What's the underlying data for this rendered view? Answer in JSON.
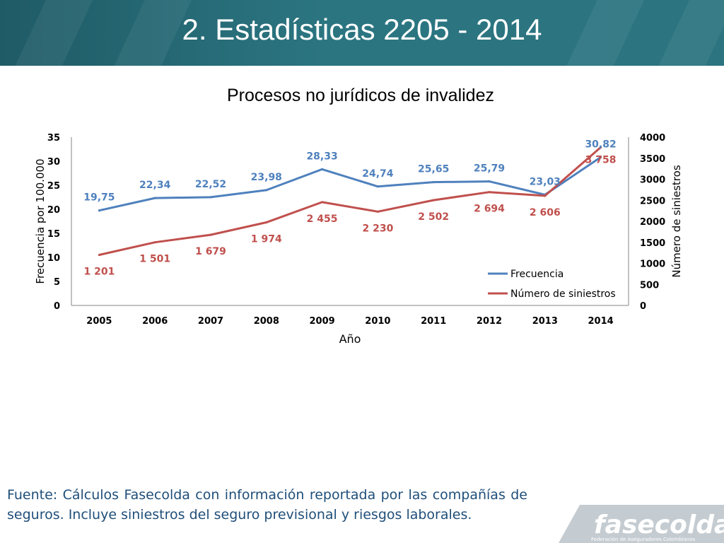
{
  "slide": {
    "title": "2. Estadísticas 2205 - 2014",
    "footnote": "Fuente: Cálculos Fasecolda con información reportada por las compañías de seguros. Incluye siniestros del seguro previsional y riesgos laborales."
  },
  "logo": {
    "name": "fasecolda",
    "tagline": "Federación de Aseguradores Colombianos"
  },
  "colors": {
    "header": "#2b7480",
    "frecuencia": "#4f81bd",
    "siniestros": "#c0504d",
    "footnote": "#1f4e79"
  },
  "chart_data": {
    "type": "line",
    "title": "Procesos no jurídicos de invalidez",
    "xlabel": "Año",
    "ylabel": "Frecuencia por 100.000",
    "y2label": "Número de siniestros",
    "categories": [
      "2005",
      "2006",
      "2007",
      "2008",
      "2009",
      "2010",
      "2011",
      "2012",
      "2013",
      "2014"
    ],
    "ylim": [
      0,
      35
    ],
    "yticks": [
      "0",
      "5",
      "10",
      "15",
      "20",
      "25",
      "30",
      "35"
    ],
    "y2lim": [
      0,
      4000
    ],
    "y2ticks": [
      "0",
      "500",
      "1000",
      "1500",
      "2000",
      "2500",
      "3000",
      "3500",
      "4000"
    ],
    "legend_position": "bottom-right",
    "series": [
      {
        "name": "Frecuencia",
        "axis": "left",
        "values": [
          19.75,
          22.34,
          22.52,
          23.98,
          28.33,
          24.74,
          25.65,
          25.79,
          23.03,
          30.82
        ],
        "labels": [
          "19,75",
          "22,34",
          "22,52",
          "23,98",
          "28,33",
          "24,74",
          "25,65",
          "25,79",
          "23,03",
          "30,82"
        ]
      },
      {
        "name": "Número de siniestros",
        "axis": "right",
        "values": [
          1201,
          1501,
          1679,
          1974,
          2455,
          2230,
          2502,
          2694,
          2606,
          3758
        ],
        "labels": [
          "1 201",
          "1 501",
          "1 679",
          "1 974",
          "2 455",
          "2 230",
          "2 502",
          "2 694",
          "2 606",
          "3 758"
        ]
      }
    ]
  }
}
